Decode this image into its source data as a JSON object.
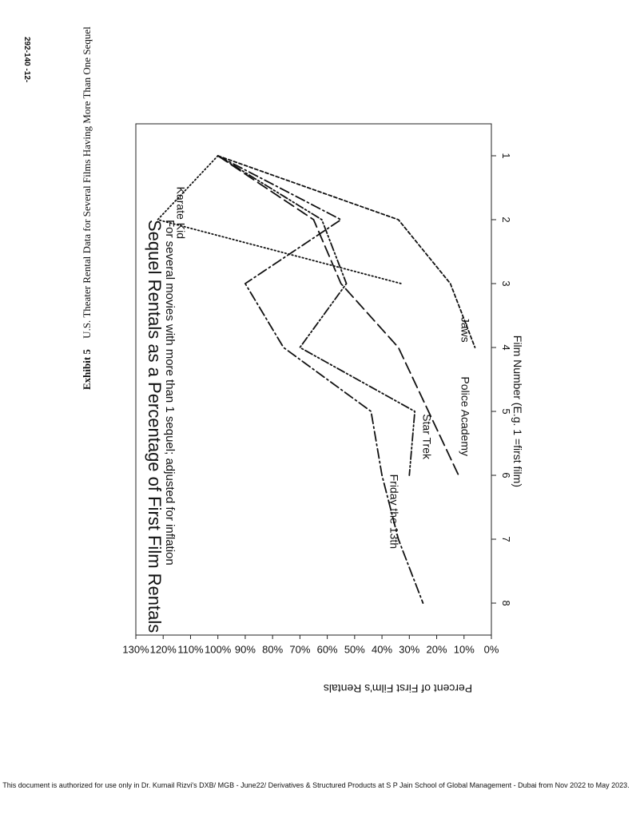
{
  "page_number": "292-140   -12-",
  "exhibit": {
    "label": "Exhibit 5",
    "title": "U.S. Theater Rental Data for Several Films Having More Than One Sequel"
  },
  "footer": "This document is authorized for use only in Dr. Kumail Rizvi's DXB/ MGB - June22/ Derivatives & Structured Products at S P Jain School of Global Management - Dubai from Nov 2022 to May 2023.",
  "chart_data": {
    "type": "line",
    "title": "Sequel Rentals as a Percentage of First Film Rentals",
    "subtitle": "For several movies with more than 1 sequel; adjusted for inflation",
    "xlabel": "Film Number (E.g. 1 =first film)",
    "ylabel": "Percent of First Film's Rentals",
    "categories": [
      1,
      2,
      3,
      4,
      5,
      6,
      7,
      8
    ],
    "xlim": [
      0.5,
      8.5
    ],
    "ylim": [
      0,
      130
    ],
    "y_ticks": [
      "0%",
      "10%",
      "20%",
      "30%",
      "40%",
      "50%",
      "60%",
      "70%",
      "80%",
      "90%",
      "100%",
      "110%",
      "120%",
      "130%"
    ],
    "x_ticks": [
      "1",
      "2",
      "3",
      "4",
      "5",
      "6",
      "7",
      "8"
    ],
    "orientation": "rotated 90 degrees clockwise on page",
    "series": [
      {
        "name": "Karate Kid",
        "style": "dotted",
        "x": [
          1,
          2,
          3
        ],
        "values": [
          100,
          122,
          33
        ]
      },
      {
        "name": "Jaws",
        "style": "short-dash",
        "x": [
          1,
          2,
          3,
          4
        ],
        "values": [
          100,
          34,
          15,
          6
        ]
      },
      {
        "name": "Police Academy",
        "style": "long-dash",
        "x": [
          1,
          2,
          3,
          4,
          5,
          6
        ],
        "values": [
          100,
          65,
          55,
          34,
          23,
          12
        ]
      },
      {
        "name": "Star Trek",
        "style": "dash-dot-dot",
        "x": [
          1,
          2,
          3,
          4,
          5,
          6
        ],
        "values": [
          100,
          62,
          53,
          70,
          28,
          30
        ]
      },
      {
        "name": "Friday the 13th",
        "style": "dash-dot",
        "x": [
          1,
          2,
          3,
          4,
          5,
          6,
          7,
          8
        ],
        "values": [
          100,
          55,
          90,
          76,
          44,
          40,
          34,
          25
        ]
      }
    ]
  }
}
